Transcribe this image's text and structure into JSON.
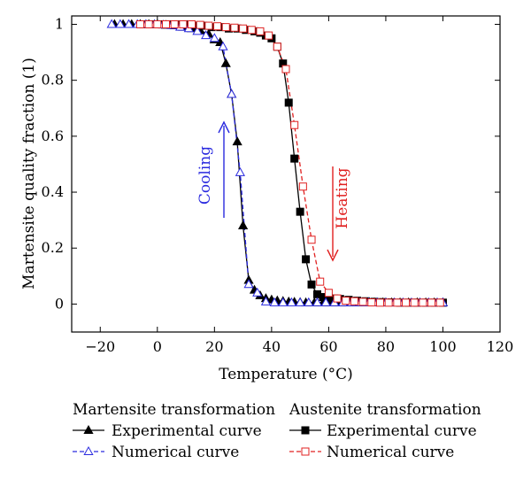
{
  "chart_data": {
    "type": "line",
    "xlabel": "Temperature (°C)",
    "ylabel": "Martensite quality fraction (1)",
    "xlim": [
      -30,
      120
    ],
    "ylim": [
      -0.1,
      1.03
    ],
    "x_ticks": [
      -20,
      0,
      20,
      40,
      60,
      80,
      100,
      120
    ],
    "x_tick_labels": [
      "−20",
      "0",
      "20",
      "40",
      "60",
      "80",
      "100",
      "120"
    ],
    "y_ticks": [
      0,
      0.2,
      0.4,
      0.6,
      0.8,
      1
    ],
    "y_tick_labels": [
      "0",
      "0.2",
      "0.4",
      "0.6",
      "0.8",
      "1"
    ],
    "grid": false,
    "legend_placement": "bottom",
    "legend_groups": [
      {
        "title": "Martensite transformation",
        "series": [
          "mart_exp",
          "mart_num"
        ]
      },
      {
        "title": "Austenite transformation",
        "series": [
          "aus_exp",
          "aus_num"
        ]
      }
    ],
    "series": [
      {
        "id": "mart_exp",
        "name": "Experimental curve",
        "color": "#000000",
        "line_style": "solid",
        "marker": "filled-triangle",
        "x": [
          -15,
          -12,
          -9,
          -6,
          -3,
          0,
          3,
          6,
          9,
          12,
          15,
          18,
          20,
          22,
          24,
          26,
          28,
          30,
          32,
          34,
          36,
          38,
          40,
          42,
          44,
          46,
          48,
          50,
          52,
          55,
          58,
          61,
          64,
          67,
          70,
          73,
          76,
          79,
          82,
          85,
          88,
          91,
          94,
          97,
          100
        ],
        "y": [
          1.0,
          1.0,
          1.0,
          1.0,
          1.0,
          1.0,
          0.997,
          0.995,
          0.99,
          0.985,
          0.978,
          0.965,
          0.945,
          0.935,
          0.86,
          0.75,
          0.58,
          0.28,
          0.085,
          0.05,
          0.03,
          0.02,
          0.015,
          0.012,
          0.01,
          0.008,
          0.007,
          0.006,
          0.005,
          0.005,
          0.005,
          0.005,
          0.005,
          0.005,
          0.005,
          0.005,
          0.005,
          0.005,
          0.005,
          0.005,
          0.005,
          0.005,
          0.005,
          0.005,
          0.005
        ]
      },
      {
        "id": "mart_num",
        "name": "Numerical curve",
        "color": "#2a2adf",
        "line_style": "dashed",
        "marker": "open-triangle",
        "x": [
          -16,
          -13,
          -10,
          -7,
          -4,
          -1,
          2,
          5,
          8,
          11,
          14,
          17,
          20,
          23,
          26,
          29,
          32,
          35,
          38,
          41,
          44,
          47,
          50,
          53,
          56,
          59,
          62,
          65,
          68,
          71,
          74,
          77,
          80,
          83,
          86,
          89,
          92,
          95,
          98,
          100
        ],
        "y": [
          1.0,
          1.0,
          1.0,
          1.0,
          1.0,
          1.0,
          0.998,
          0.996,
          0.99,
          0.985,
          0.975,
          0.96,
          0.95,
          0.92,
          0.75,
          0.47,
          0.07,
          0.04,
          0.008,
          0.005,
          0.005,
          0.005,
          0.005,
          0.005,
          0.005,
          0.005,
          0.005,
          0.005,
          0.005,
          0.005,
          0.005,
          0.005,
          0.005,
          0.005,
          0.005,
          0.005,
          0.005,
          0.005,
          0.005,
          0.005
        ]
      },
      {
        "id": "aus_exp",
        "name": "Experimental curve",
        "color": "#000000",
        "line_style": "solid",
        "marker": "filled-square",
        "x": [
          -5,
          -2,
          1,
          4,
          7,
          10,
          13,
          16,
          19,
          22,
          25,
          28,
          31,
          34,
          36,
          38,
          40,
          42,
          44,
          46,
          48,
          50,
          52,
          54,
          56,
          58,
          60,
          62,
          64,
          67,
          70,
          73,
          76,
          79,
          82,
          85,
          88,
          91,
          94,
          97,
          100
        ],
        "y": [
          1.0,
          1.0,
          1.0,
          1.0,
          1.0,
          1.0,
          0.995,
          0.995,
          0.99,
          0.99,
          0.985,
          0.985,
          0.98,
          0.975,
          0.97,
          0.96,
          0.95,
          0.92,
          0.86,
          0.72,
          0.52,
          0.33,
          0.16,
          0.07,
          0.035,
          0.025,
          0.022,
          0.02,
          0.018,
          0.015,
          0.012,
          0.01,
          0.008,
          0.007,
          0.006,
          0.005,
          0.005,
          0.005,
          0.005,
          0.005,
          0.005
        ]
      },
      {
        "id": "aus_num",
        "name": "Numerical curve",
        "color": "#e02020",
        "line_style": "dashed",
        "marker": "open-square",
        "x": [
          -6,
          -3,
          0,
          3,
          6,
          9,
          12,
          15,
          18,
          21,
          24,
          27,
          30,
          33,
          36,
          39,
          42,
          45,
          48,
          51,
          54,
          57,
          60,
          63,
          66,
          69,
          72,
          75,
          78,
          81,
          84,
          87,
          90,
          93,
          96,
          99
        ],
        "y": [
          1.0,
          1.0,
          1.0,
          1.0,
          1.0,
          1.0,
          1.0,
          0.998,
          0.995,
          0.993,
          0.99,
          0.988,
          0.985,
          0.98,
          0.975,
          0.96,
          0.92,
          0.84,
          0.64,
          0.42,
          0.23,
          0.08,
          0.04,
          0.02,
          0.012,
          0.01,
          0.008,
          0.006,
          0.005,
          0.005,
          0.005,
          0.005,
          0.005,
          0.005,
          0.005,
          0.005
        ]
      }
    ],
    "annotations": [
      {
        "id": "cooling",
        "text": "Cooling",
        "color": "#2a2adf",
        "arrow": "up"
      },
      {
        "id": "heating",
        "text": "Heating",
        "color": "#e02020",
        "arrow": "down"
      }
    ]
  }
}
